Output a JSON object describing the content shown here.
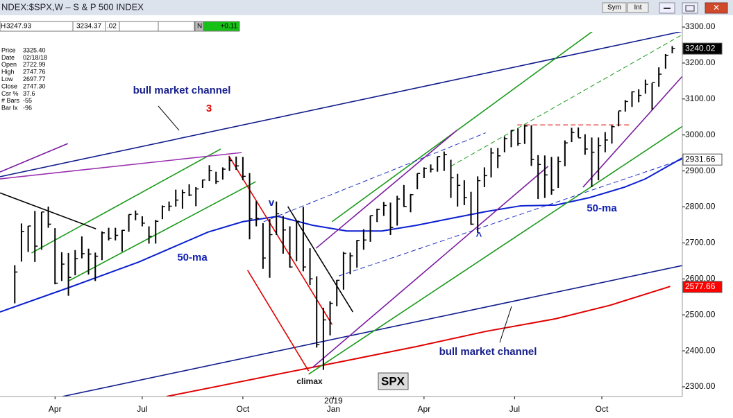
{
  "header": {
    "title": "NDEX:$SPX,W – S & P 500 INDEX",
    "sym_button": "Sym",
    "int_button": "Int"
  },
  "quote_row": {
    "high": "H",
    "high_value": "3247.93",
    "low_value": "3234.37",
    "change_small": ".02",
    "flag": "N",
    "change": "+0.11"
  },
  "info_panel": {
    "labels": [
      "Price",
      "Date",
      "Open",
      "High",
      "Low",
      "Close",
      "Csr %",
      "# Bars",
      "Bar Ix"
    ],
    "values": [
      "3325.40",
      "02/18/18",
      "2722.99",
      "2747.76",
      "2697.77",
      "2747.30",
      "37.6",
      "-55",
      "-96"
    ]
  },
  "chart_data": {
    "type": "ohlc",
    "title": "SPX",
    "annotations": {
      "channel_top": "bull market channel",
      "wave": "3",
      "v_mark": "v",
      "ma_left": "50-ma",
      "ma_right": "50-ma",
      "caret": "^",
      "climax": "climax",
      "channel_bottom": "bull market channel",
      "year": "2019"
    },
    "xlim": [
      -2.2,
      99.5
    ],
    "xticks": [
      {
        "value": 6,
        "label": "Apr"
      },
      {
        "value": 19,
        "label": "Jul"
      },
      {
        "value": 34,
        "label": "Oct"
      },
      {
        "value": 47.5,
        "label": "Jan"
      },
      {
        "value": 61,
        "label": "Apr"
      },
      {
        "value": 74.5,
        "label": "Jul"
      },
      {
        "value": 87.5,
        "label": "Oct"
      }
    ],
    "ylim": [
      2273,
      3327
    ],
    "yticks": [
      {
        "value": 2300,
        "label": "2300.00"
      },
      {
        "value": 2400,
        "label": "2400.00"
      },
      {
        "value": 2500,
        "label": "2500.00"
      },
      {
        "value": 2600,
        "label": "2600.00"
      },
      {
        "value": 2700,
        "label": "2700.00"
      },
      {
        "value": 2800,
        "label": "2800.00"
      },
      {
        "value": 2900,
        "label": "2900.00"
      },
      {
        "value": 3000,
        "label": "3000.00"
      },
      {
        "value": 3100,
        "label": "3100.00"
      },
      {
        "value": 3200,
        "label": "3200.00"
      },
      {
        "value": 3300,
        "label": "3300.00"
      }
    ],
    "bar_color": "#000000",
    "high": [
      2638,
      2754,
      2747,
      2789,
      2786,
      2801,
      2741,
      2674,
      2672,
      2680,
      2718,
      2684,
      2673,
      2732,
      2742,
      2742,
      2736,
      2779,
      2790,
      2774,
      2746,
      2764,
      2804,
      2815,
      2848,
      2848,
      2863,
      2855,
      2876,
      2916,
      2898,
      2910,
      2940,
      2940,
      2939,
      2894,
      2816,
      2755,
      2766,
      2815,
      2775,
      2746,
      2760,
      2800,
      2685,
      2607,
      2520,
      2538,
      2597,
      2675,
      2673,
      2708,
      2738,
      2776,
      2795,
      2814,
      2812,
      2831,
      2861,
      2836,
      2893,
      2910,
      2918,
      2940,
      2954,
      2931,
      2892,
      2874,
      2842,
      2885,
      2910,
      2964,
      2964,
      2996,
      3013,
      3018,
      3028,
      3027,
      2944,
      2943,
      2939,
      2940,
      2985,
      3020,
      3021,
      3002,
      2993,
      2993,
      3008,
      3027,
      3066,
      3097,
      3121,
      3127,
      3154,
      3144,
      3188,
      3225,
      3247
    ],
    "low": [
      2532,
      2648,
      2675,
      2647,
      2681,
      2742,
      2585,
      2594,
      2553,
      2610,
      2657,
      2612,
      2594,
      2652,
      2707,
      2707,
      2676,
      2731,
      2763,
      2746,
      2698,
      2698,
      2766,
      2789,
      2801,
      2795,
      2830,
      2802,
      2853,
      2872,
      2864,
      2876,
      2900,
      2903,
      2874,
      2710,
      2746,
      2628,
      2603,
      2722,
      2670,
      2631,
      2649,
      2621,
      2583,
      2409,
      2347,
      2443,
      2524,
      2570,
      2613,
      2631,
      2681,
      2703,
      2758,
      2775,
      2722,
      2748,
      2800,
      2785,
      2849,
      2880,
      2896,
      2898,
      2900,
      2825,
      2801,
      2805,
      2750,
      2728,
      2855,
      2882,
      2908,
      2952,
      2966,
      2970,
      2975,
      2914,
      2822,
      2825,
      2834,
      2853,
      2913,
      2980,
      2993,
      2945,
      2855,
      2874,
      2952,
      2976,
      3024,
      3065,
      3078,
      3091,
      3115,
      3070,
      3134,
      3184,
      3227
    ],
    "close": [
      2619,
      2732,
      2747,
      2691,
      2786,
      2752,
      2588,
      2641,
      2604,
      2656,
      2670,
      2669,
      2663,
      2728,
      2713,
      2721,
      2735,
      2779,
      2780,
      2755,
      2718,
      2760,
      2801,
      2802,
      2819,
      2840,
      2833,
      2850,
      2875,
      2901,
      2871,
      2905,
      2929,
      2914,
      2885,
      2767,
      2768,
      2658,
      2723,
      2781,
      2736,
      2633,
      2760,
      2633,
      2600,
      2417,
      2486,
      2532,
      2596,
      2671,
      2664,
      2707,
      2708,
      2776,
      2793,
      2804,
      2743,
      2822,
      2801,
      2834,
      2893,
      2907,
      2905,
      2940,
      2946,
      2881,
      2860,
      2826,
      2752,
      2873,
      2887,
      2950,
      2942,
      2990,
      3013,
      2976,
      3025,
      2932,
      2918,
      2889,
      2847,
      2926,
      2978,
      3007,
      2992,
      2961,
      2952,
      2970,
      2986,
      3023,
      3067,
      3093,
      3120,
      3110,
      3141,
      3146,
      3169,
      3221,
      3240
    ],
    "series": [
      {
        "color": "#0a1fd0",
        "x": [
          -2.2,
          8.1,
          18.5,
          28.8,
          34,
          39.2,
          44.4,
          49.5,
          54.7,
          59.9,
          65,
          70.2,
          75.4,
          80.6,
          85.7,
          90.9,
          94,
          99.5
        ],
        "values": [
          2508,
          2576,
          2647,
          2730,
          2759,
          2774,
          2749,
          2733,
          2733,
          2749,
          2768,
          2787,
          2803,
          2805,
          2826,
          2855,
          2878,
          2936
        ]
      },
      {
        "color": "#e00000",
        "x": [
          22.6,
          28.8,
          39.2,
          49.5,
          59.9,
          70.2,
          80.6,
          88.8,
          97.7
        ],
        "values": [
          2273,
          2296,
          2335,
          2373,
          2412,
          2454,
          2489,
          2527,
          2579
        ]
      }
    ],
    "trendlines": [
      {
        "color": "#101c8c",
        "style": "solid",
        "x": [
          -2.2,
          99.5
        ],
        "y": [
          2884,
          3288
        ]
      },
      {
        "color": "#101c8c",
        "style": "solid",
        "x": [
          7.1,
          99.5
        ],
        "y": [
          2273,
          2637
        ]
      },
      {
        "color": "#1a9a1a",
        "style": "solid",
        "x": [
          2.5,
          30.7
        ],
        "y": [
          2672,
          2961
        ]
      },
      {
        "color": "#1a9a1a",
        "style": "solid",
        "x": [
          8.1,
          35.9
        ],
        "y": [
          2595,
          2870
        ]
      },
      {
        "color": "#9a30b0",
        "style": "solid",
        "x": [
          -2.2,
          33.8
        ],
        "y": [
          2878,
          2951
        ]
      },
      {
        "color": "#7a1aa0",
        "style": "solid",
        "x": [
          -2.2,
          7.9
        ],
        "y": [
          2897,
          2976
        ]
      },
      {
        "color": "#000000",
        "style": "solid",
        "x": [
          -2.2,
          12.1
        ],
        "y": [
          2839,
          2739
        ]
      },
      {
        "color": "#e00000",
        "style": "solid",
        "x": [
          31.9,
          47.3
        ],
        "y": [
          2942,
          2473
        ]
      },
      {
        "color": "#e00000",
        "style": "solid",
        "x": [
          34.7,
          43.8
        ],
        "y": [
          2624,
          2344
        ]
      },
      {
        "color": "#000000",
        "style": "solid",
        "x": [
          40.7,
          50.4
        ],
        "y": [
          2801,
          2508
        ]
      },
      {
        "color": "#1a9a1a",
        "style": "solid",
        "x": [
          47.3,
          92.5
        ],
        "y": [
          2759,
          3375
        ]
      },
      {
        "color": "#1a9a1a",
        "style": "solid",
        "x": [
          43.8,
          99.5
        ],
        "y": [
          2335,
          3024
        ]
      },
      {
        "color": "#7a1aa0",
        "style": "solid",
        "x": [
          44.4,
          79.5
        ],
        "y": [
          2354,
          2913
        ]
      },
      {
        "color": "#7a1aa0",
        "style": "solid",
        "x": [
          44.9,
          65.9
        ],
        "y": [
          2685,
          3013
        ]
      },
      {
        "color": "#7a1aa0",
        "style": "solid",
        "x": [
          84.7,
          99.5
        ],
        "y": [
          2855,
          3163
        ]
      },
      {
        "color": "#2030c0",
        "style": "dashed",
        "x": [
          48.3,
          99.5
        ],
        "y": [
          2608,
          2932
        ]
      },
      {
        "color": "#2030c0",
        "style": "dashed",
        "x": [
          37.1,
          70.2
        ],
        "y": [
          2759,
          3006
        ]
      },
      {
        "color": "#1a9a1a",
        "style": "dashed",
        "x": [
          65,
          99.5
        ],
        "y": [
          2913,
          3279
        ]
      },
      {
        "color": "#e00000",
        "style": "dashed",
        "x": [
          74.9,
          91.9
        ],
        "y": [
          3028,
          3028
        ]
      }
    ],
    "price_markers": [
      {
        "value": 3240.02,
        "color": "#000000",
        "text_color": "#ffffff"
      },
      {
        "value": 2931.66,
        "color": "#ffffff",
        "text_color": "#000000"
      },
      {
        "value": 2577.66,
        "color": "#ff0000",
        "text_color": "#ffffff"
      }
    ]
  }
}
